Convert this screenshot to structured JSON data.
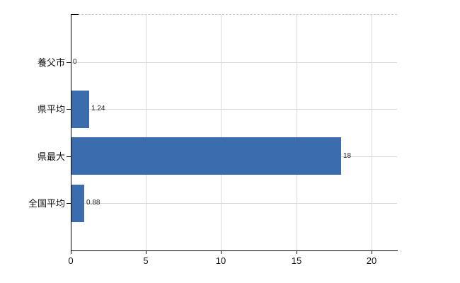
{
  "page": {
    "background": "#ffffff"
  },
  "chart_data": {
    "type": "bar",
    "orientation": "horizontal",
    "title": "",
    "xlabel": "",
    "ylabel": "",
    "categories": [
      "養父市",
      "県平均",
      "県最大",
      "全国平均"
    ],
    "values": [
      0,
      1.24,
      18,
      0.88
    ],
    "value_labels": [
      "0",
      "1.24",
      "18",
      "0.88"
    ],
    "xticks": [
      0,
      5,
      10,
      15,
      20
    ],
    "xtick_labels": [
      "0",
      "5",
      "10",
      "15",
      "20"
    ],
    "xlim": [
      0,
      21.7
    ],
    "grid": true,
    "legend": false,
    "colors": {
      "bar": "#3b6dae",
      "axis": "#000000",
      "vertical_gridline": "#dcdcdc",
      "horizontal_gridline": "#d4dad4",
      "dashed_border": "#c9c9c9",
      "tick_text": "#111111",
      "value_text": "#222222",
      "background": "#ffffff"
    }
  }
}
